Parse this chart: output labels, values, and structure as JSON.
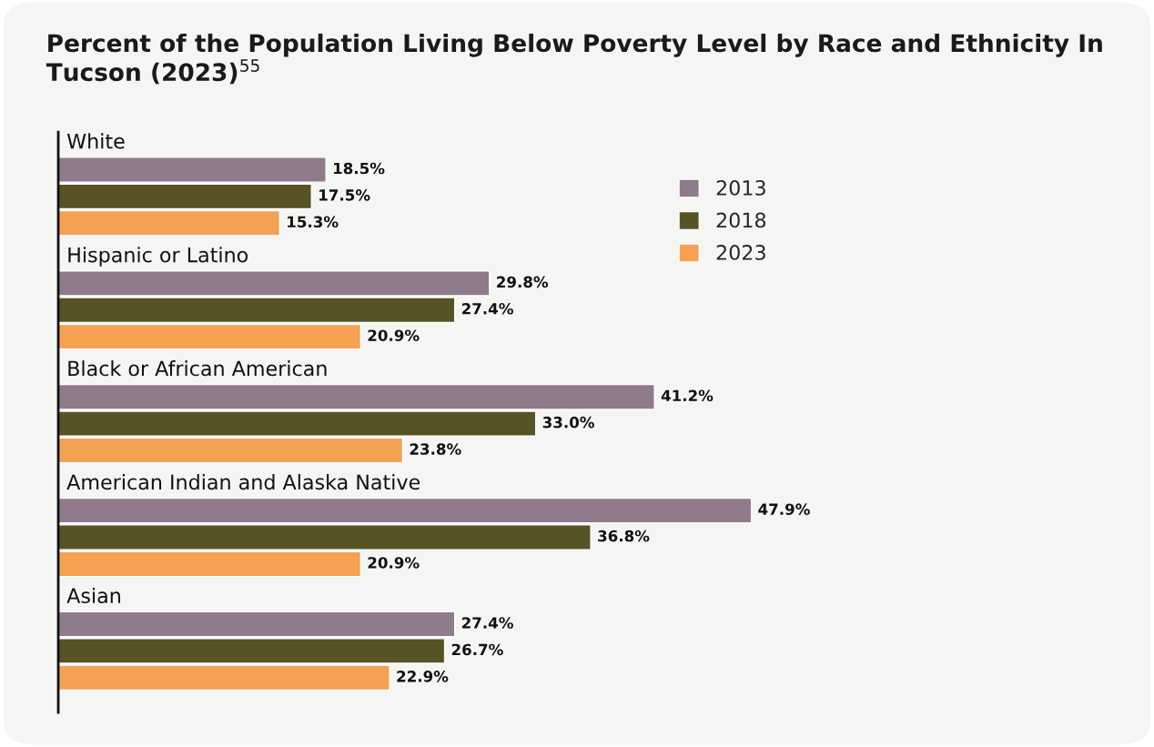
{
  "chart_data": {
    "type": "bar",
    "orientation": "horizontal",
    "title": "Percent of the Population Living Below Poverty Level by Race and Ethnicity In Tucson (2023)$^{55}$",
    "categories": [
      "White",
      "Hispanic or Latino",
      "Black or African American",
      "American Indian and Alaska Native",
      "Asian"
    ],
    "series": [
      {
        "name": "2013",
        "color": "#8f7b8b",
        "values": [
          18.5,
          29.8,
          41.2,
          47.9,
          27.4
        ],
        "value_labels": [
          "18.5%",
          "29.8%",
          "41.2%",
          "47.9%",
          "27.4%"
        ]
      },
      {
        "name": "2018",
        "color": "#575325",
        "values": [
          17.5,
          27.4,
          33.0,
          36.8,
          26.7
        ],
        "value_labels": [
          "17.5%",
          "27.4%",
          "33.0%",
          "36.8%",
          "26.7%"
        ]
      },
      {
        "name": "2023",
        "color": "#f4a154",
        "values": [
          15.3,
          20.9,
          23.8,
          20.9,
          22.9
        ],
        "value_labels": [
          "15.3%",
          "20.9%",
          "23.8%",
          "20.9%",
          "22.9%"
        ]
      }
    ],
    "legend": "top right",
    "tick_labels": "y"
  }
}
